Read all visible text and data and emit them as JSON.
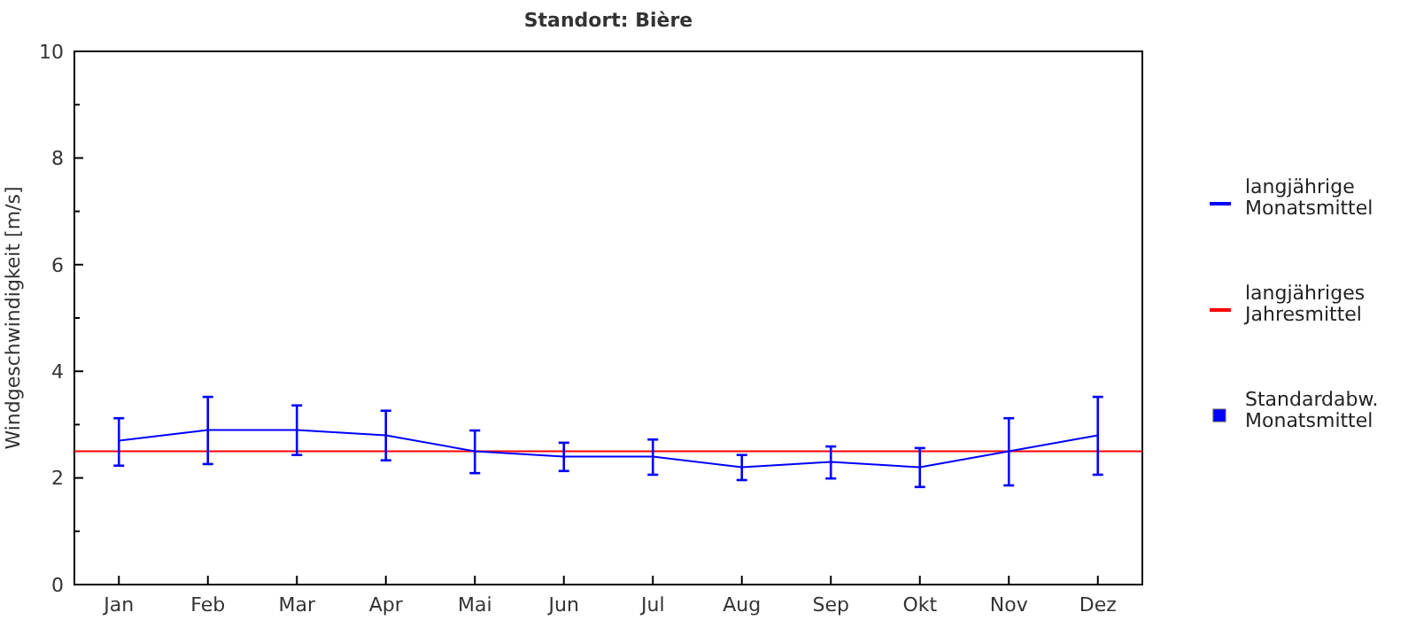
{
  "chart_data": {
    "type": "line",
    "title": "Standort: Bière",
    "ylabel": "Windgeschwindigkeit [m/s]",
    "categories": [
      "Jan",
      "Feb",
      "Mar",
      "Apr",
      "Mai",
      "Jun",
      "Jul",
      "Aug",
      "Sep",
      "Okt",
      "Nov",
      "Dez"
    ],
    "series": [
      {
        "name": "langjährige Monatsmittel",
        "color": "#0000ff",
        "values": [
          2.7,
          2.9,
          2.9,
          2.8,
          2.5,
          2.4,
          2.4,
          2.2,
          2.3,
          2.2,
          2.5,
          2.8
        ],
        "errors": [
          [
            2.23,
            3.12
          ],
          [
            2.26,
            3.52
          ],
          [
            2.43,
            3.36
          ],
          [
            2.33,
            3.26
          ],
          [
            2.09,
            2.89
          ],
          [
            2.13,
            2.66
          ],
          [
            2.06,
            2.72
          ],
          [
            1.96,
            2.43
          ],
          [
            1.99,
            2.59
          ],
          [
            1.83,
            2.56
          ],
          [
            1.86,
            3.12
          ],
          [
            2.06,
            3.52
          ]
        ]
      }
    ],
    "ref_lines": [
      {
        "axis": "y",
        "value": 2.5,
        "label": "langjähriges Jahresmittel",
        "color": "#ff0000"
      }
    ],
    "annotations": [
      "Standardabw. Monatsmittel"
    ],
    "ylim": [
      0,
      10
    ],
    "yticks": [
      0,
      {
        "value": 1,
        "label": null
      },
      2,
      {
        "value": 3,
        "label": null
      },
      4,
      {
        "value": 5,
        "label": null
      },
      6,
      {
        "value": 7,
        "label": null
      },
      8,
      {
        "value": 9,
        "label": null
      },
      10
    ],
    "grid": false,
    "legend": "right",
    "marker": "none",
    "line_style": "solid"
  }
}
